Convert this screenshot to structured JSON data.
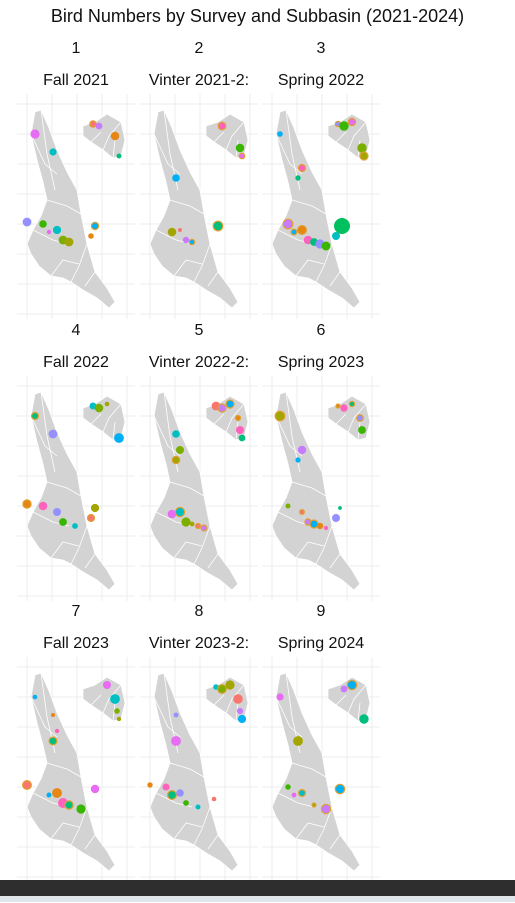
{
  "title": "Bird Numbers by Survey and Subbasin (2021-2024)",
  "colors": {
    "land": "#d3d3d3",
    "boundary": "#ffffff",
    "grid": "#ececec",
    "text": "#111111",
    "footer": "#2e2e2e"
  },
  "panels": [
    {
      "number": "1",
      "label": "Fall 2021"
    },
    {
      "number": "2",
      "label": "Vinter 2021-2:"
    },
    {
      "number": "3",
      "label": "Spring 2022"
    },
    {
      "number": "4",
      "label": "Fall 2022"
    },
    {
      "number": "5",
      "label": "Vinter 2022-2:"
    },
    {
      "number": "6",
      "label": "Spring 2023"
    },
    {
      "number": "7",
      "label": "Fall 2023"
    },
    {
      "number": "8",
      "label": "Vinter 2023-2:"
    },
    {
      "number": "9",
      "label": "Spring 2024"
    }
  ]
}
